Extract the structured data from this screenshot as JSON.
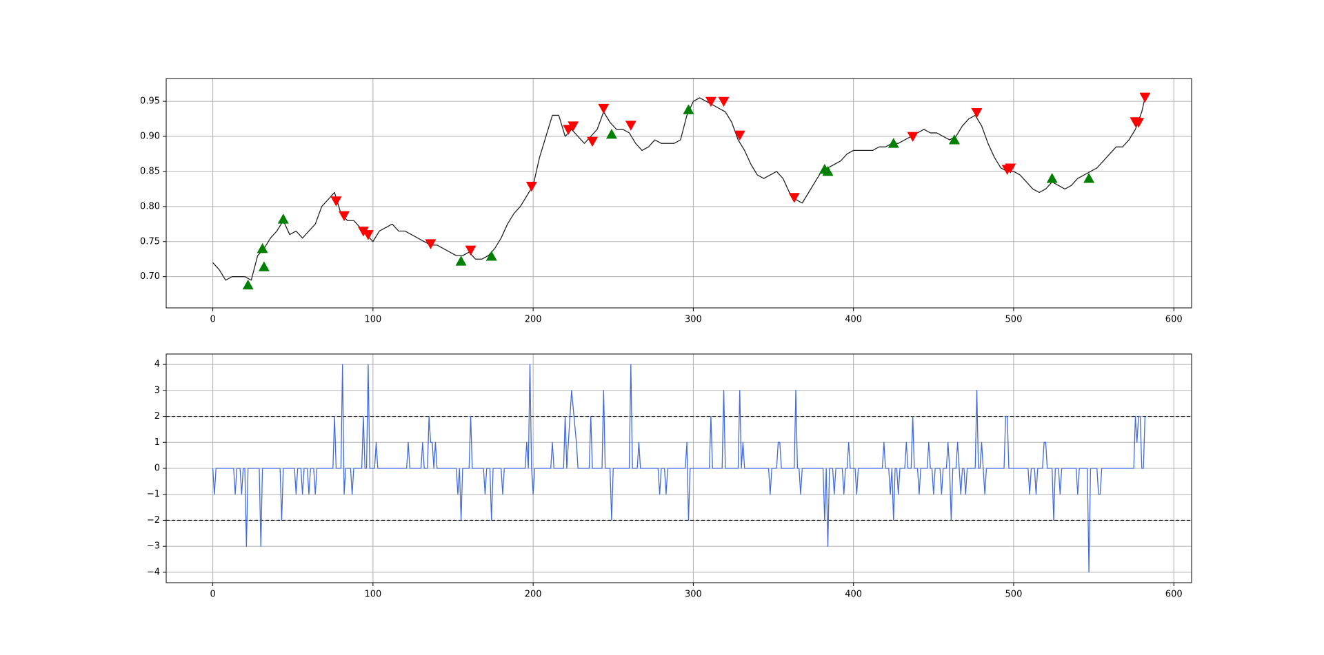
{
  "chart_data": [
    {
      "type": "line",
      "grid": true,
      "xlim": [
        -29.1,
        611.1
      ],
      "xticks": [
        0,
        100,
        200,
        300,
        400,
        500,
        600
      ],
      "ylim": [
        0.6555,
        0.9825
      ],
      "yticks": [
        {
          "value": 0.7,
          "label": "0.70"
        },
        {
          "value": 0.75,
          "label": "0.75"
        },
        {
          "value": 0.8,
          "label": "0.80"
        },
        {
          "value": 0.85,
          "label": "0.85"
        },
        {
          "value": 0.9,
          "label": "0.90"
        },
        {
          "value": 0.95,
          "label": "0.95"
        }
      ],
      "series": [
        {
          "color": "#222222",
          "x": [
            0,
            4,
            8,
            12,
            16,
            20,
            24,
            28,
            32,
            36,
            40,
            44,
            48,
            52,
            56,
            60,
            64,
            68,
            72,
            76,
            80,
            84,
            88,
            92,
            96,
            100,
            104,
            108,
            112,
            116,
            120,
            124,
            128,
            132,
            136,
            140,
            144,
            148,
            152,
            156,
            160,
            164,
            168,
            172,
            176,
            180,
            184,
            188,
            192,
            196,
            200,
            204,
            208,
            212,
            216,
            220,
            224,
            228,
            232,
            236,
            240,
            244,
            248,
            252,
            256,
            260,
            264,
            268,
            272,
            276,
            280,
            284,
            288,
            292,
            296,
            300,
            304,
            308,
            312,
            316,
            320,
            324,
            328,
            332,
            336,
            340,
            344,
            348,
            352,
            356,
            360,
            364,
            368,
            372,
            376,
            380,
            384,
            388,
            392,
            396,
            400,
            404,
            408,
            412,
            416,
            420,
            424,
            428,
            432,
            436,
            440,
            444,
            448,
            452,
            456,
            460,
            464,
            468,
            472,
            476,
            480,
            484,
            488,
            492,
            496,
            500,
            504,
            508,
            512,
            516,
            520,
            524,
            528,
            532,
            536,
            540,
            544,
            548,
            552,
            556,
            560,
            564,
            568,
            572,
            576,
            580,
            582
          ],
          "values": [
            0.72,
            0.71,
            0.695,
            0.7,
            0.7,
            0.7,
            0.695,
            0.73,
            0.74,
            0.755,
            0.765,
            0.78,
            0.76,
            0.765,
            0.755,
            0.765,
            0.775,
            0.8,
            0.81,
            0.82,
            0.79,
            0.78,
            0.78,
            0.77,
            0.76,
            0.75,
            0.765,
            0.77,
            0.775,
            0.765,
            0.765,
            0.76,
            0.755,
            0.75,
            0.745,
            0.745,
            0.74,
            0.735,
            0.73,
            0.73,
            0.735,
            0.725,
            0.725,
            0.73,
            0.74,
            0.755,
            0.775,
            0.79,
            0.8,
            0.815,
            0.83,
            0.87,
            0.9,
            0.93,
            0.93,
            0.9,
            0.91,
            0.9,
            0.89,
            0.9,
            0.91,
            0.935,
            0.92,
            0.91,
            0.91,
            0.905,
            0.89,
            0.88,
            0.885,
            0.895,
            0.89,
            0.89,
            0.89,
            0.895,
            0.93,
            0.95,
            0.955,
            0.95,
            0.945,
            0.94,
            0.935,
            0.92,
            0.895,
            0.88,
            0.86,
            0.845,
            0.84,
            0.845,
            0.85,
            0.84,
            0.82,
            0.81,
            0.805,
            0.82,
            0.835,
            0.85,
            0.855,
            0.86,
            0.865,
            0.875,
            0.88,
            0.88,
            0.88,
            0.88,
            0.885,
            0.885,
            0.89,
            0.89,
            0.895,
            0.9,
            0.905,
            0.91,
            0.905,
            0.905,
            0.9,
            0.895,
            0.9,
            0.915,
            0.925,
            0.93,
            0.915,
            0.89,
            0.87,
            0.855,
            0.85,
            0.85,
            0.845,
            0.835,
            0.825,
            0.82,
            0.825,
            0.835,
            0.83,
            0.825,
            0.83,
            0.84,
            0.845,
            0.85,
            0.855,
            0.865,
            0.875,
            0.885,
            0.885,
            0.895,
            0.91,
            0.935,
            0.955
          ]
        },
        {
          "color": "green",
          "marker": "^",
          "x": [
            22,
            31,
            32,
            44,
            155,
            174,
            249,
            297,
            382,
            384,
            425,
            463,
            524,
            547
          ],
          "values": [
            0.688,
            0.74,
            0.714,
            0.782,
            0.722,
            0.729,
            0.903,
            0.938,
            0.853,
            0.85,
            0.89,
            0.895,
            0.84,
            0.84
          ]
        },
        {
          "color": "red",
          "marker": "v",
          "x": [
            77,
            82,
            94,
            97,
            136,
            161,
            199,
            222,
            225,
            237,
            244,
            261,
            311,
            319,
            329,
            363,
            437,
            477,
            496,
            498,
            576,
            578,
            582
          ],
          "values": [
            0.808,
            0.787,
            0.765,
            0.76,
            0.747,
            0.738,
            0.829,
            0.91,
            0.915,
            0.893,
            0.94,
            0.916,
            0.95,
            0.95,
            0.902,
            0.813,
            0.9,
            0.934,
            0.853,
            0.855,
            0.921,
            0.92,
            0.956
          ]
        }
      ]
    },
    {
      "type": "line",
      "grid": true,
      "xlim": [
        -29.1,
        611.1
      ],
      "xticks": [
        0,
        100,
        200,
        300,
        400,
        500,
        600
      ],
      "ylim": [
        -4.4,
        4.4
      ],
      "yticks": [
        {
          "value": -4,
          "label": "−4"
        },
        {
          "value": -3,
          "label": "−3"
        },
        {
          "value": -2,
          "label": "−2"
        },
        {
          "value": -1,
          "label": "−1"
        },
        0,
        1,
        2,
        3,
        4
      ],
      "hlines": [
        2,
        -2
      ],
      "series": [
        {
          "color": "royalblue",
          "x": [
            0,
            1,
            2,
            13,
            14,
            15,
            17,
            18,
            19,
            20,
            21,
            22,
            29,
            30,
            31,
            42,
            43,
            44,
            51,
            52,
            53,
            55,
            56,
            57,
            59,
            60,
            61,
            63,
            64,
            65,
            75,
            76,
            77,
            80,
            81,
            82,
            83,
            86,
            87,
            88,
            93,
            94,
            95,
            96,
            97,
            98,
            101,
            102,
            103,
            121,
            122,
            123,
            130,
            131,
            132,
            134,
            135,
            136,
            137,
            138,
            139,
            140,
            152,
            153,
            154,
            155,
            156,
            160,
            161,
            162,
            169,
            170,
            171,
            173,
            174,
            175,
            180,
            181,
            182,
            195,
            196,
            197,
            198,
            199,
            200,
            201,
            211,
            212,
            213,
            219,
            220,
            221,
            224,
            227,
            228,
            235,
            236,
            237,
            243,
            244,
            245,
            248,
            249,
            250,
            260,
            261,
            262,
            265,
            266,
            267,
            278,
            279,
            280,
            282,
            283,
            284,
            295,
            296,
            297,
            298,
            310,
            311,
            312,
            318,
            319,
            320,
            328,
            329,
            330,
            331,
            332,
            347,
            348,
            349,
            352,
            353,
            354,
            355,
            363,
            364,
            365,
            366,
            367,
            368,
            381,
            382,
            383,
            384,
            385,
            387,
            388,
            389,
            393,
            394,
            395,
            396,
            397,
            398,
            401,
            402,
            403,
            418,
            419,
            420,
            422,
            423,
            424,
            425,
            426,
            427,
            428,
            429,
            432,
            433,
            434,
            436,
            437,
            438,
            440,
            441,
            442,
            446,
            447,
            448,
            449,
            450,
            451,
            454,
            455,
            456,
            458,
            459,
            460,
            461,
            462,
            464,
            465,
            466,
            467,
            468,
            469,
            470,
            471,
            476,
            477,
            478,
            479,
            480,
            481,
            482,
            483,
            494,
            495,
            496,
            497,
            509,
            510,
            511,
            513,
            514,
            515,
            518,
            519,
            520,
            521,
            524,
            525,
            526,
            528,
            529,
            530,
            539,
            540,
            541,
            546,
            547,
            548,
            552,
            553,
            554,
            555,
            575,
            576,
            577,
            578,
            579,
            580,
            581,
            582
          ],
          "values": [
            0,
            -1,
            0,
            0,
            -1,
            0,
            0,
            -1,
            0,
            0,
            -3,
            0,
            0,
            -3,
            0,
            0,
            -2,
            0,
            0,
            -1,
            0,
            0,
            -1,
            0,
            0,
            -1,
            0,
            0,
            -1,
            0,
            0,
            2,
            0,
            0,
            4,
            -1,
            0,
            0,
            -1,
            0,
            0,
            2,
            0,
            0,
            4,
            0,
            0,
            1,
            0,
            0,
            1,
            0,
            0,
            1,
            0,
            0,
            2,
            1,
            1,
            0,
            1,
            0,
            0,
            -1,
            0,
            -2,
            0,
            0,
            2,
            0,
            0,
            -1,
            0,
            0,
            -2,
            0,
            0,
            -1,
            0,
            0,
            1,
            0,
            4,
            0,
            -1,
            0,
            0,
            1,
            0,
            0,
            2,
            0,
            3,
            1,
            0,
            0,
            2,
            0,
            0,
            3,
            0,
            0,
            -2,
            0,
            0,
            4,
            0,
            0,
            1,
            0,
            0,
            -1,
            0,
            0,
            -1,
            0,
            0,
            1,
            -2,
            0,
            0,
            2,
            0,
            0,
            3,
            0,
            0,
            3,
            0,
            1,
            0,
            0,
            -1,
            0,
            0,
            1,
            1,
            0,
            0,
            3,
            0,
            0,
            -1,
            0,
            0,
            -2,
            0,
            -3,
            0,
            0,
            -1,
            0,
            0,
            -1,
            0,
            0,
            1,
            0,
            0,
            -1,
            0,
            0,
            1,
            0,
            0,
            -1,
            0,
            -2,
            0,
            0,
            -1,
            0,
            0,
            1,
            0,
            0,
            2,
            0,
            0,
            -1,
            0,
            0,
            1,
            0,
            0,
            -1,
            0,
            0,
            -1,
            0,
            0,
            1,
            0,
            -2,
            0,
            0,
            1,
            0,
            -1,
            0,
            0,
            -1,
            0,
            0,
            3,
            0,
            0,
            1,
            0,
            -1,
            0,
            0,
            2,
            2,
            0,
            0,
            -1,
            0,
            0,
            -1,
            0,
            0,
            1,
            1,
            0,
            0,
            -2,
            0,
            0,
            -1,
            0,
            0,
            -1,
            0,
            0,
            -4,
            0,
            0,
            -1,
            -1,
            0,
            0,
            2,
            1,
            2,
            2,
            0,
            0,
            2
          ]
        }
      ]
    }
  ]
}
